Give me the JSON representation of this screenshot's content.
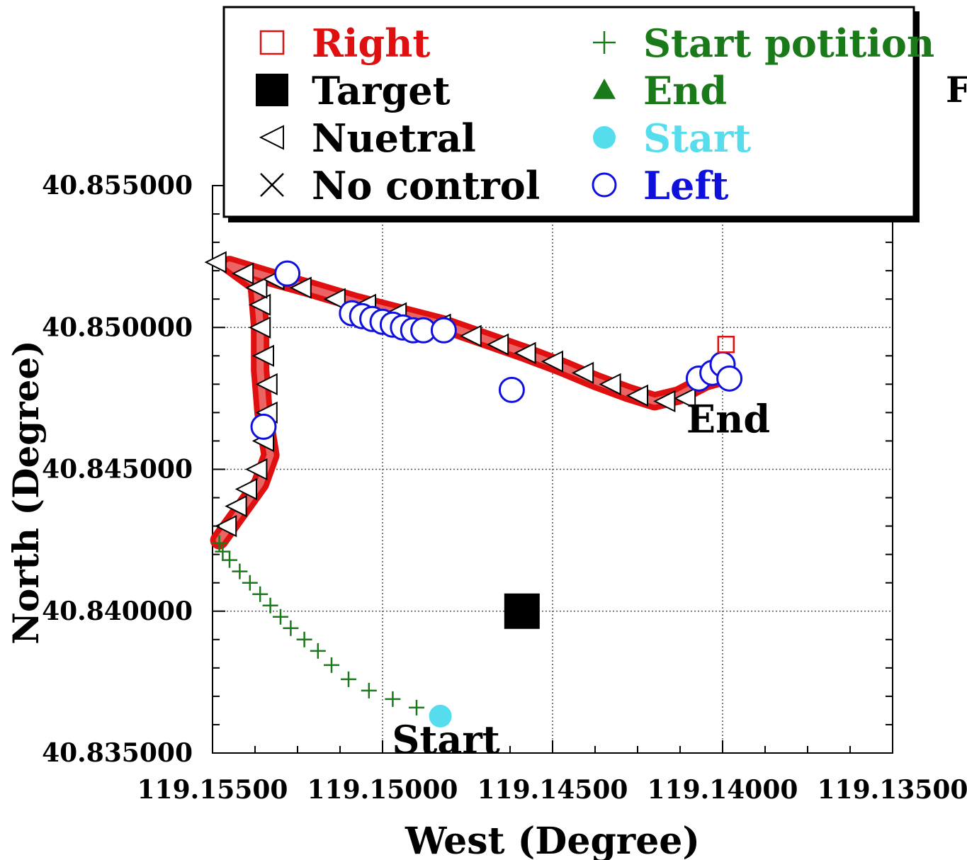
{
  "chart_data": {
    "type": "scatter",
    "title": "",
    "xlabel": "West (Degree)",
    "ylabel": "North (Degree)",
    "x_reversed": true,
    "xlim": [
      119.155,
      119.135
    ],
    "ylim": [
      40.835,
      40.855
    ],
    "x_ticks": [
      "119.15500",
      "119.15000",
      "119.14500",
      "119.14000",
      "119.13500"
    ],
    "x_tick_values": [
      119.155,
      119.15,
      119.145,
      119.14,
      119.135
    ],
    "y_ticks": [
      "40.835000",
      "40.840000",
      "40.845000",
      "40.850000",
      "40.855000"
    ],
    "y_tick_values": [
      40.835,
      40.84,
      40.845,
      40.85,
      40.855
    ],
    "grid": true,
    "legend_position": "top",
    "colors": {
      "right": "#e01010",
      "target": "#000000",
      "neutral": "#000000",
      "no_control": "#000000",
      "start_position": "#1a7a1a",
      "end": "#1a7a1a",
      "start": "#55ddee",
      "left": "#1010dd"
    },
    "legend": [
      {
        "key": "right",
        "label": "Right",
        "marker": "open-square",
        "color": "#e01010",
        "text_color": "#e01010"
      },
      {
        "key": "target",
        "label": "Target",
        "marker": "filled-square",
        "color": "#000000",
        "text_color": "#000000"
      },
      {
        "key": "neutral",
        "label": "Nuetral",
        "marker": "open-left-triangle",
        "color": "#000000",
        "text_color": "#000000"
      },
      {
        "key": "no_control",
        "label": "No control",
        "marker": "x-cross",
        "color": "#000000",
        "text_color": "#000000"
      },
      {
        "key": "start_position",
        "label": "Start potition",
        "marker": "plus",
        "color": "#1a7a1a",
        "text_color": "#1a7a1a"
      },
      {
        "key": "end",
        "label": "End",
        "marker": "filled-triangle",
        "color": "#1a7a1a",
        "text_color": "#1a7a1a"
      },
      {
        "key": "start",
        "label": "Start",
        "marker": "filled-circle",
        "color": "#55ddee",
        "text_color": "#55ddee"
      },
      {
        "key": "left",
        "label": "Left",
        "marker": "open-circle",
        "color": "#1010dd",
        "text_color": "#1010dd"
      }
    ],
    "annotations": [
      {
        "text": "End",
        "x": 119.14,
        "y": 40.8468
      },
      {
        "text": "Start",
        "x": 119.1483,
        "y": 40.8355
      }
    ],
    "target": {
      "x": 119.1459,
      "y": 40.84
    },
    "start": {
      "x": 119.1483,
      "y": 40.8363
    },
    "path": [
      [
        119.1483,
        40.8363
      ],
      [
        119.1497,
        40.8368
      ],
      [
        119.1512,
        40.8375
      ],
      [
        119.1522,
        40.8385
      ],
      [
        119.153,
        40.8395
      ],
      [
        119.1538,
        40.8405
      ],
      [
        119.1545,
        40.8415
      ],
      [
        119.1548,
        40.8425
      ],
      [
        119.1542,
        40.8435
      ],
      [
        119.1536,
        40.8445
      ],
      [
        119.1533,
        40.8455
      ],
      [
        119.1535,
        40.847
      ],
      [
        119.1536,
        40.8485
      ],
      [
        119.1536,
        40.85
      ],
      [
        119.1537,
        40.8515
      ],
      [
        119.1545,
        40.8522
      ],
      [
        119.1534,
        40.8518
      ],
      [
        119.1522,
        40.8514
      ],
      [
        119.1508,
        40.8509
      ],
      [
        119.1495,
        40.8505
      ],
      [
        119.1482,
        40.8501
      ],
      [
        119.147,
        40.8496
      ],
      [
        119.1458,
        40.8491
      ],
      [
        119.1447,
        40.8486
      ],
      [
        119.1437,
        40.8481
      ],
      [
        119.1428,
        40.8477
      ],
      [
        119.142,
        40.8474
      ],
      [
        119.1413,
        40.8476
      ],
      [
        119.1405,
        40.8481
      ],
      [
        119.1399,
        40.8483
      ]
    ],
    "series": [
      {
        "name": "Start potition",
        "x": [
          119.1483,
          119.149,
          119.1497,
          119.1504,
          119.151,
          119.1515,
          119.1519,
          119.1523,
          119.1527,
          119.153,
          119.1533,
          119.1536,
          119.1539,
          119.1542,
          119.1545,
          119.1547,
          119.1548
        ],
        "y": [
          40.8363,
          40.8366,
          40.8369,
          40.8372,
          40.8376,
          40.8381,
          40.8386,
          40.839,
          40.8394,
          40.8398,
          40.8402,
          40.8406,
          40.841,
          40.8414,
          40.8418,
          40.8421,
          40.8424
        ]
      },
      {
        "name": "Nuetral",
        "x": [
          119.1546,
          119.1543,
          119.154,
          119.1537,
          119.1535,
          119.1534,
          119.1534,
          119.1535,
          119.1536,
          119.1536,
          119.1537,
          119.1549,
          119.1541,
          119.1532,
          119.1524,
          119.1514,
          119.1505,
          119.1496,
          119.1483,
          119.1474,
          119.1466,
          119.1458,
          119.145,
          119.1441,
          119.1433,
          119.1425,
          119.1417,
          119.1411
        ],
        "y": [
          40.843,
          40.8437,
          40.8443,
          40.845,
          40.846,
          40.847,
          40.848,
          40.849,
          40.85,
          40.8508,
          40.8514,
          40.8523,
          40.8519,
          40.8517,
          40.8514,
          40.851,
          40.8508,
          40.8505,
          40.8501,
          40.8497,
          40.8494,
          40.8491,
          40.8488,
          40.8484,
          40.848,
          40.8476,
          40.8474,
          40.8475
        ]
      },
      {
        "name": "Left",
        "x": [
          119.1535,
          119.1528,
          119.1509,
          119.1506,
          119.1503,
          119.15,
          119.1497,
          119.1494,
          119.1491,
          119.1488,
          119.1482,
          119.1462,
          119.1407,
          119.1403,
          119.14,
          119.1398
        ],
        "y": [
          40.8465,
          40.8519,
          40.8505,
          40.8504,
          40.8503,
          40.8502,
          40.8501,
          40.85,
          40.8499,
          40.8499,
          40.8499,
          40.8478,
          40.8482,
          40.8484,
          40.8487,
          40.8482
        ]
      },
      {
        "name": "Right",
        "x": [
          119.1399
        ],
        "y": [
          40.8494
        ]
      }
    ]
  }
}
